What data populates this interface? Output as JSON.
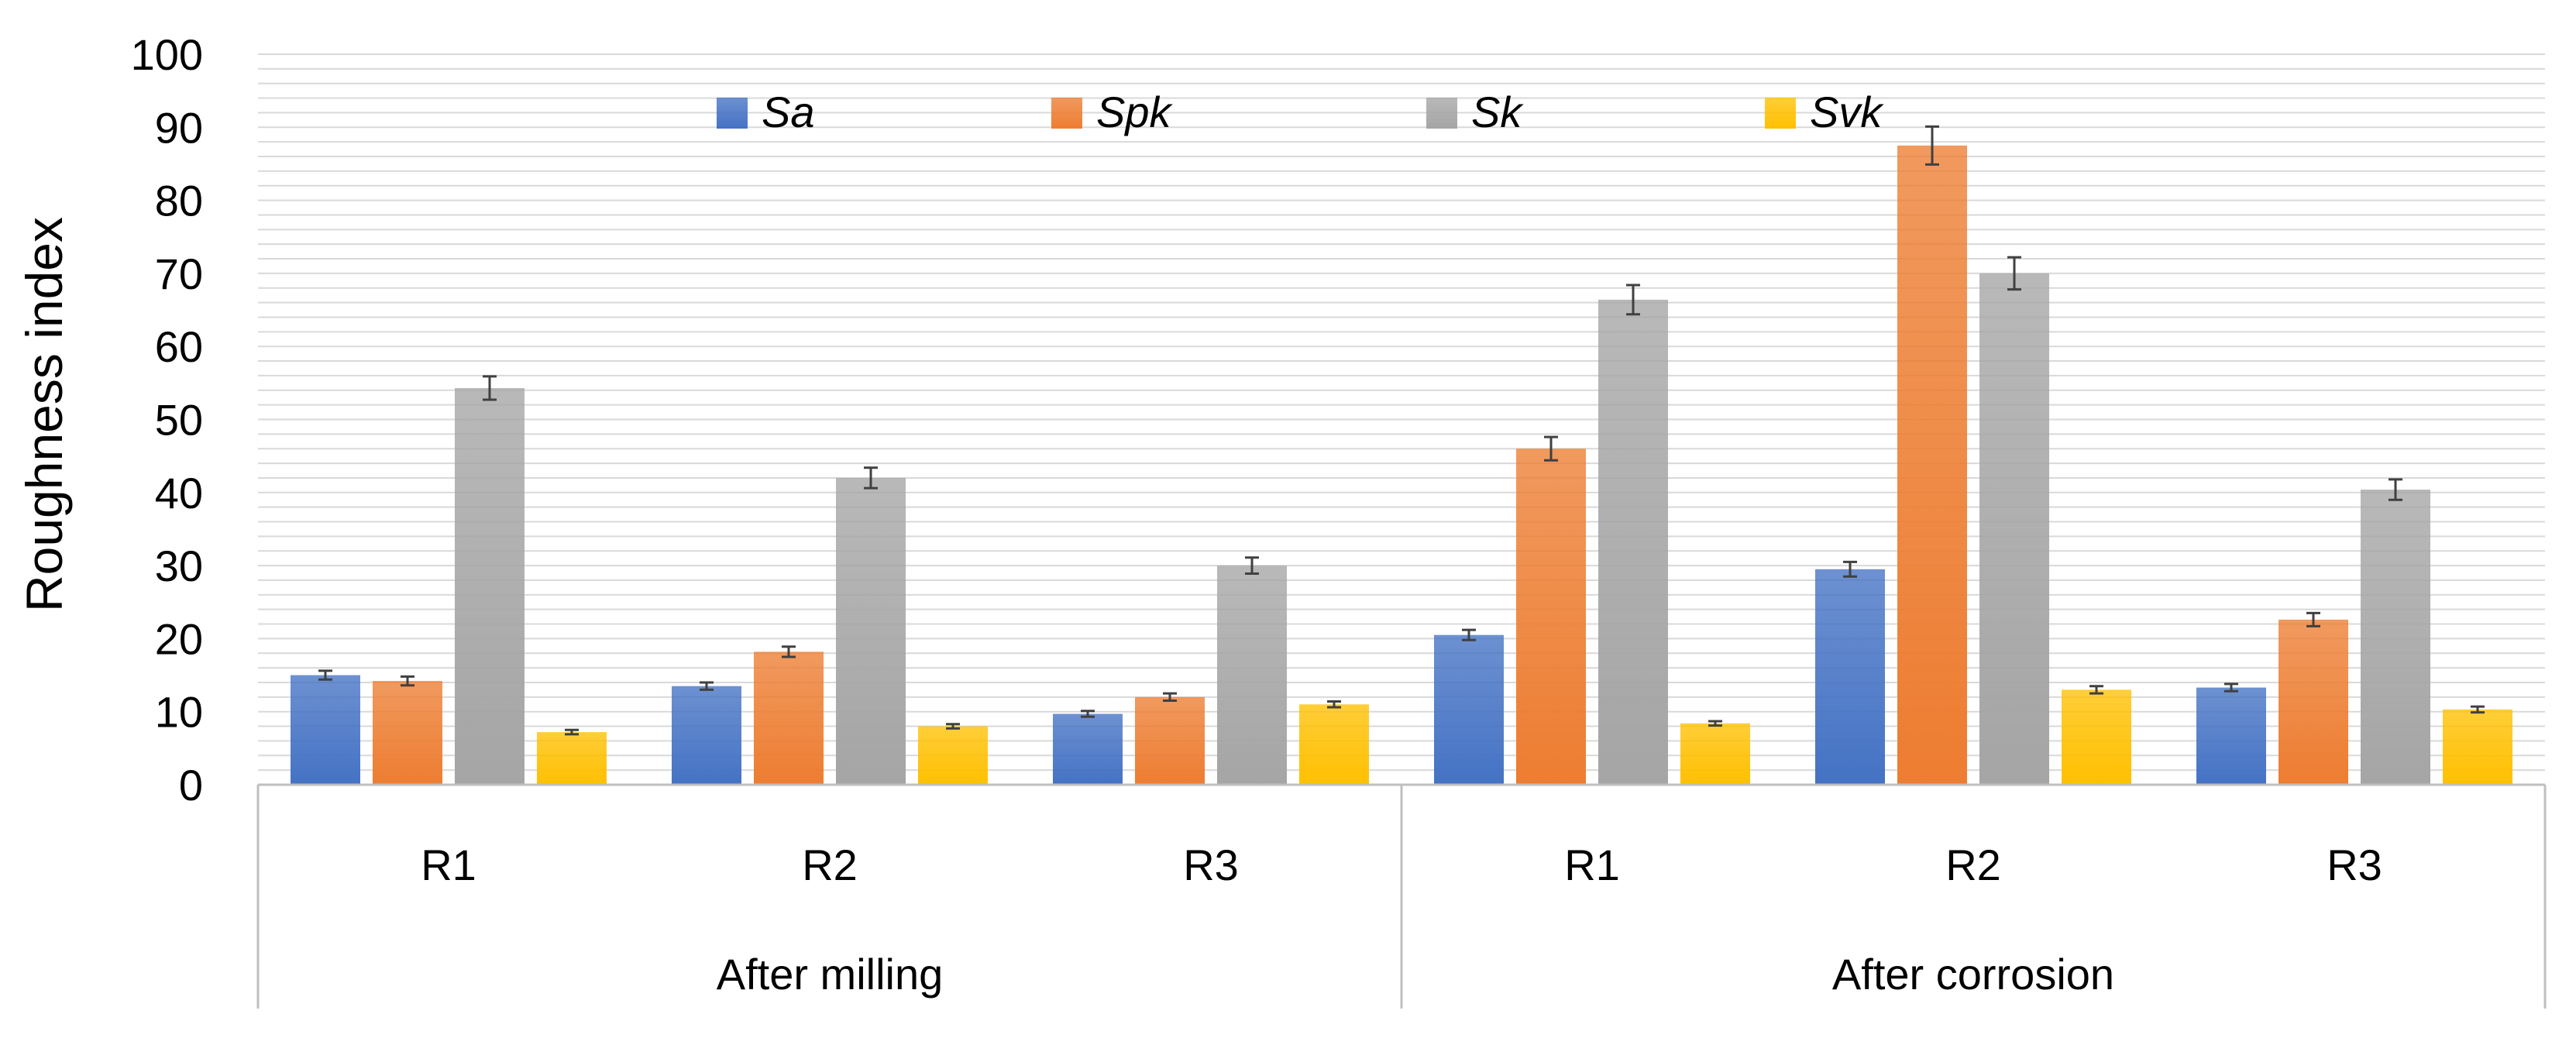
{
  "chart_data": {
    "type": "bar",
    "title": "",
    "xlabel": "",
    "ylabel": "Roughness index",
    "ylim": [
      0,
      100
    ],
    "yticks": [
      0,
      10,
      20,
      30,
      40,
      50,
      60,
      70,
      80,
      90,
      100
    ],
    "grid": true,
    "legend_position": "top",
    "groups": [
      {
        "label": "After milling",
        "categories": [
          "R1",
          "R2",
          "R3"
        ]
      },
      {
        "label": "After corrosion",
        "categories": [
          "R1",
          "R2",
          "R3"
        ]
      }
    ],
    "series": [
      {
        "name": "Sa",
        "color": "#4472C4",
        "values": [
          15,
          13.5,
          9.7,
          20.5,
          29.5,
          13.3
        ],
        "errors": [
          0.6,
          0.5,
          0.4,
          0.7,
          1.0,
          0.5
        ]
      },
      {
        "name": "Spk",
        "color": "#ED7D31",
        "values": [
          14.2,
          18.2,
          12,
          46,
          87.5,
          22.6
        ],
        "errors": [
          0.6,
          0.7,
          0.5,
          1.6,
          2.6,
          0.9
        ]
      },
      {
        "name": "Sk",
        "color": "#A5A5A5",
        "values": [
          54.3,
          42,
          30,
          66.4,
          70,
          40.4
        ],
        "errors": [
          1.6,
          1.4,
          1.1,
          2.0,
          2.2,
          1.4
        ]
      },
      {
        "name": "Svk",
        "color": "#FFC000",
        "values": [
          7.2,
          8,
          11,
          8.4,
          13,
          10.3
        ],
        "errors": [
          0.3,
          0.3,
          0.4,
          0.3,
          0.5,
          0.4
        ]
      }
    ]
  }
}
